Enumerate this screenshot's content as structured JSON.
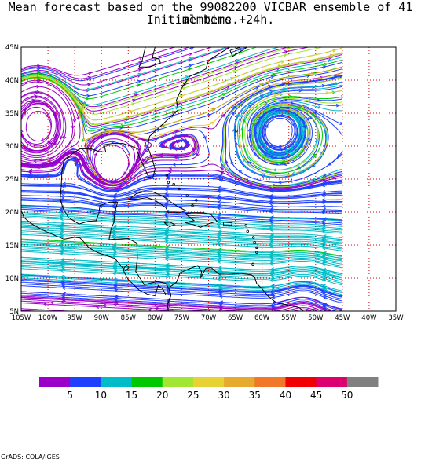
{
  "title": {
    "line1": "Mean forecast based on the 99082200 VICBAR ensemble of 41 members.",
    "line2": "Initial time +24h."
  },
  "map": {
    "lon_labels": [
      "105W",
      "100W",
      "95W",
      "90W",
      "85W",
      "80W",
      "75W",
      "70W",
      "65W",
      "60W",
      "55W",
      "50W",
      "45W",
      "40W",
      "35W"
    ],
    "lat_labels": [
      "45N",
      "40N",
      "35N",
      "30N",
      "25N",
      "20N",
      "15N",
      "10N",
      "5N"
    ],
    "lon_range": [
      -105,
      -35
    ],
    "lat_range": [
      5,
      45
    ],
    "data_east_limit": -45,
    "grid_color": "#e00000",
    "field": "wind streamlines colored by speed"
  },
  "colorbar": {
    "colors": [
      "#9a00c8",
      "#2040ff",
      "#00bcc8",
      "#00c800",
      "#a0e632",
      "#e6d232",
      "#e6aa2e",
      "#f07828",
      "#f00000",
      "#dc006e",
      "#808080"
    ],
    "labels": [
      "5",
      "10",
      "15",
      "20",
      "25",
      "30",
      "35",
      "40",
      "45",
      "50"
    ]
  },
  "credit": "GrADS: COLA/IGES"
}
